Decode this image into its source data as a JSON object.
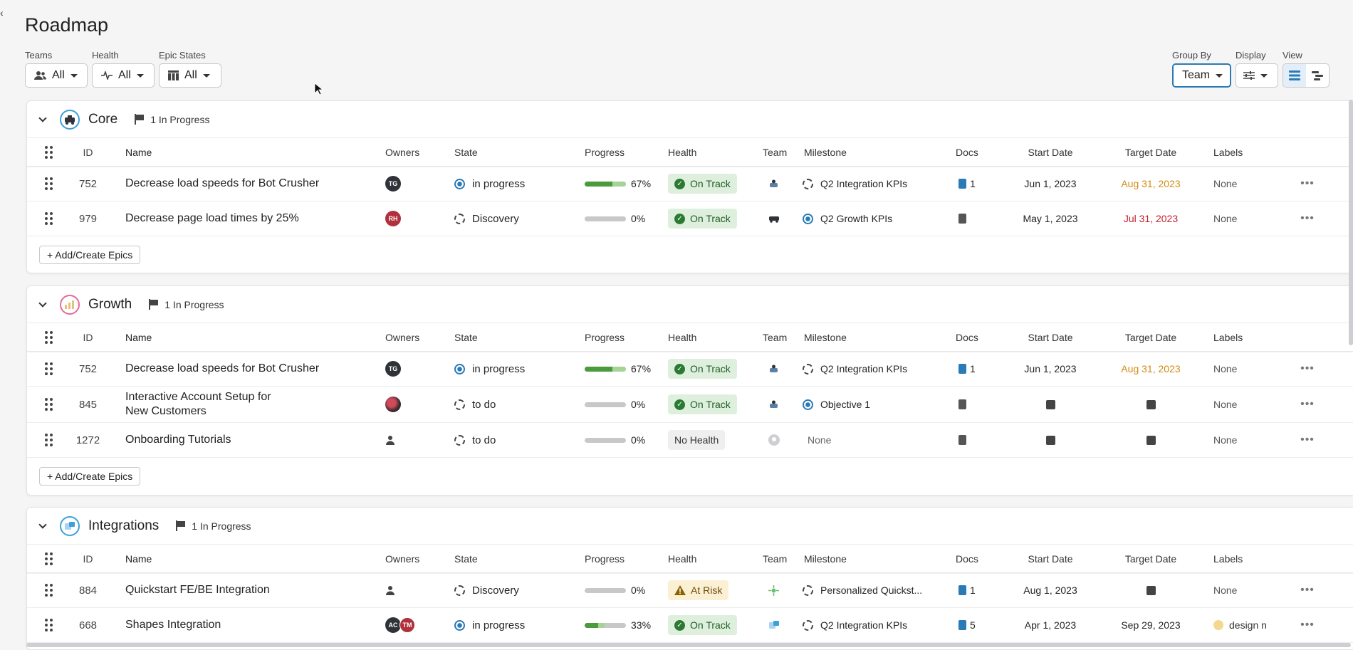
{
  "page": {
    "title": "Roadmap"
  },
  "filters": {
    "teams": {
      "label": "Teams",
      "value": "All"
    },
    "health": {
      "label": "Health",
      "value": "All"
    },
    "epic_states": {
      "label": "Epic States",
      "value": "All"
    }
  },
  "controls": {
    "group_by": {
      "label": "Group By",
      "value": "Team"
    },
    "display": {
      "label": "Display"
    },
    "view": {
      "label": "View"
    }
  },
  "columns": {
    "id": "ID",
    "name": "Name",
    "owners": "Owners",
    "state": "State",
    "progress": "Progress",
    "health": "Health",
    "team": "Team",
    "milestone": "Milestone",
    "docs": "Docs",
    "start_date": "Start Date",
    "target_date": "Target Date",
    "labels": "Labels"
  },
  "add_button_label": "+ Add/Create Epics",
  "groups": [
    {
      "name": "Core",
      "badge": "1 In Progress",
      "rows": [
        {
          "id": "752",
          "name": "Decrease load speeds for Bot Crusher",
          "owner": "TG",
          "state": "in progress",
          "progress": "67%",
          "progress_value": 67,
          "health": "On Track",
          "milestone": "Q2 Integration KPIs",
          "docs": "1",
          "start": "Jun 1, 2023",
          "target": "Aug 31, 2023",
          "labels": "None"
        },
        {
          "id": "979",
          "name": "Decrease page load times by 25%",
          "owner": "RH",
          "state": "Discovery",
          "progress": "0%",
          "progress_value": 0,
          "health": "On Track",
          "milestone": "Q2 Growth KPIs",
          "docs": "",
          "start": "May 1, 2023",
          "target": "Jul 31, 2023",
          "labels": "None"
        }
      ]
    },
    {
      "name": "Growth",
      "badge": "1 In Progress",
      "rows": [
        {
          "id": "752",
          "name": "Decrease load speeds for Bot Crusher",
          "owner": "TG",
          "state": "in progress",
          "progress": "67%",
          "progress_value": 67,
          "health": "On Track",
          "milestone": "Q2 Integration KPIs",
          "docs": "1",
          "start": "Jun 1, 2023",
          "target": "Aug 31, 2023",
          "labels": "None"
        },
        {
          "id": "845",
          "name": "Interactive Account Setup for New Customers",
          "owner": "",
          "state": "to do",
          "progress": "0%",
          "progress_value": 0,
          "health": "On Track",
          "milestone": "Objective 1",
          "docs": "",
          "start": "",
          "target": "",
          "labels": "None"
        },
        {
          "id": "1272",
          "name": "Onboarding Tutorials",
          "owner": "",
          "state": "to do",
          "progress": "0%",
          "progress_value": 0,
          "health": "No Health",
          "milestone": "None",
          "docs": "",
          "start": "",
          "target": "",
          "labels": "None"
        }
      ]
    },
    {
      "name": "Integrations",
      "badge": "1 In Progress",
      "rows": [
        {
          "id": "884",
          "name": "Quickstart FE/BE Integration",
          "owner": "",
          "state": "Discovery",
          "progress": "0%",
          "progress_value": 0,
          "health": "At Risk",
          "milestone": "Personalized Quickst...",
          "docs": "1",
          "start": "Aug 1, 2023",
          "target": "",
          "labels": "None"
        },
        {
          "id": "668",
          "name": "Shapes Integration",
          "owner": "AC",
          "owner2": "TM",
          "state": "in progress",
          "progress": "33%",
          "progress_value": 33,
          "health": "On Track",
          "milestone": "Q2 Integration KPIs",
          "docs": "5",
          "start": "Apr 1, 2023",
          "target": "Sep 29, 2023",
          "labels": "design n"
        }
      ]
    }
  ]
}
